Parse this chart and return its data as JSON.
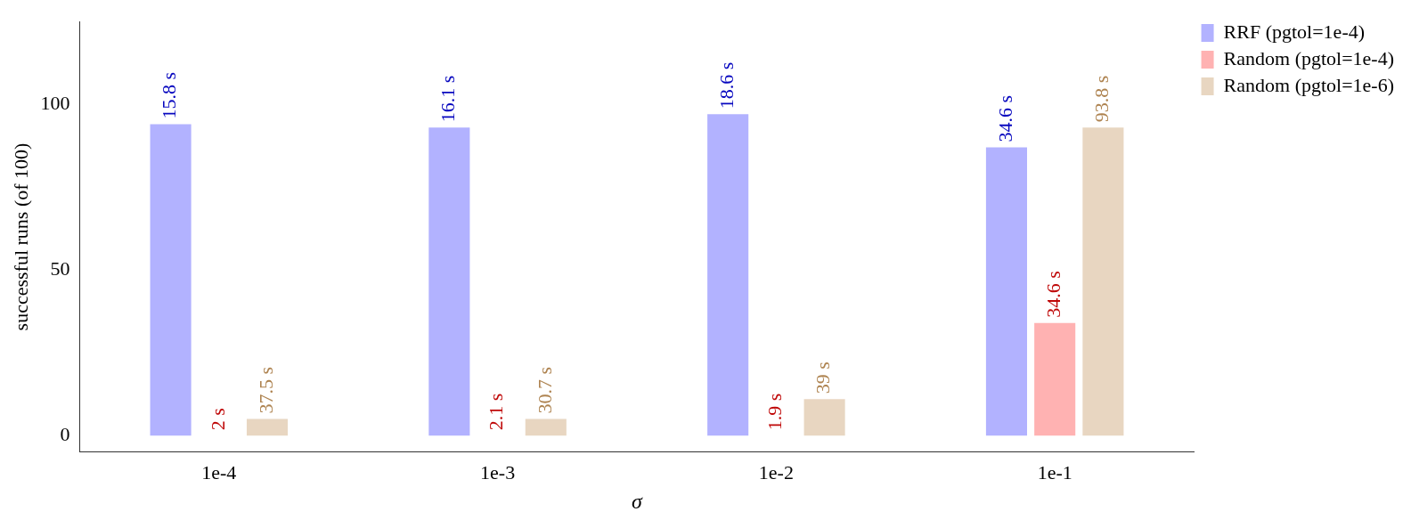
{
  "chart_data": {
    "type": "bar",
    "xlabel": "σ",
    "ylabel": "successful runs (of 100)",
    "categories": [
      "1e-4",
      "1e-3",
      "1e-2",
      "1e-1"
    ],
    "ylim": [
      -5,
      125
    ],
    "yticks": [
      0,
      50,
      100
    ],
    "grid": false,
    "legend": "top right",
    "series": [
      {
        "name": "RRF (pgtol=1e-4)",
        "color": "#b2b2ff",
        "values": [
          94,
          93,
          97,
          87
        ]
      },
      {
        "name": "Random (pgtol=1e-4)",
        "color": "#ffb2b2",
        "values": [
          0,
          0,
          0,
          34
        ]
      },
      {
        "name": "Random (pgtol=1e-6)",
        "color": "#e8d6c1",
        "values": [
          5,
          5,
          11,
          93
        ]
      }
    ],
    "annotations": [
      "15.8 s",
      "16.1 s",
      "18.6 s",
      "34.6 s",
      "2 s",
      "2.1 s",
      "1.9 s",
      "34.6 s",
      "37.5 s",
      "30.7 s",
      "39 s",
      "93.8 s"
    ]
  }
}
